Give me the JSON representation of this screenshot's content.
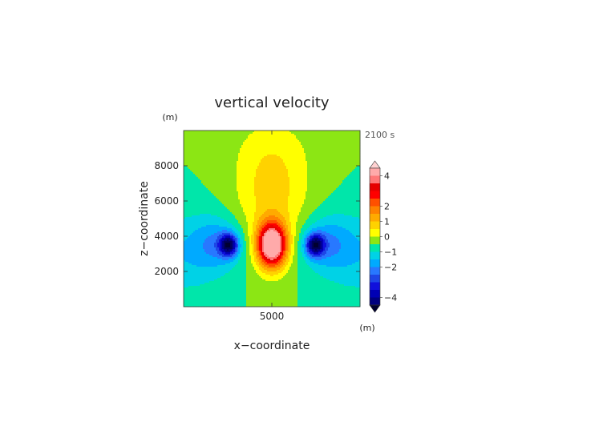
{
  "chart_data": {
    "type": "heatmap",
    "title": "vertical velocity",
    "xlabel": "x−coordinate",
    "ylabel": "z−coordinate",
    "x_unit": "(m)",
    "y_unit": "(m)",
    "time_label": "2100 s",
    "xlim": [
      0,
      10000
    ],
    "ylim": [
      0,
      10000
    ],
    "xticks": [
      {
        "value": 5000,
        "label": "5000"
      }
    ],
    "yticks": [
      {
        "value": 2000,
        "label": "2000"
      },
      {
        "value": 4000,
        "label": "4000"
      },
      {
        "value": 6000,
        "label": "6000"
      },
      {
        "value": 8000,
        "label": "8000"
      }
    ],
    "grid": false,
    "legend": "right",
    "colorbar": {
      "levels": [
        -4.5,
        -4,
        -3.5,
        -3,
        -2.5,
        -2,
        -1.5,
        -1,
        -0.5,
        0,
        0.5,
        1,
        1.5,
        2,
        2.5,
        3,
        3.5,
        4,
        4.5
      ],
      "colors": [
        "#000030",
        "#00005a",
        "#000080",
        "#0000b4",
        "#1010dc",
        "#1e46e6",
        "#2878ff",
        "#00aaff",
        "#00d2e6",
        "#00e6aa",
        "#8ce614",
        "#ffff00",
        "#ffd200",
        "#ffaa00",
        "#ff8200",
        "#ff5000",
        "#ff0000",
        "#e60000",
        "#ff7878",
        "#ffaaaa",
        "#ffd2d2"
      ],
      "tick_labels": [
        {
          "value": 4,
          "label": "4"
        },
        {
          "value": 2,
          "label": "2"
        },
        {
          "value": 1,
          "label": "1"
        },
        {
          "value": 0,
          "label": "0"
        },
        {
          "value": -1,
          "label": "−1"
        },
        {
          "value": -2,
          "label": "−2"
        },
        {
          "value": -4,
          "label": "−4"
        }
      ]
    },
    "features": [
      {
        "kind": "updraft",
        "x": 5000,
        "z": 3500,
        "peak": 5
      },
      {
        "kind": "downdraft",
        "x": 2550,
        "z": 3500,
        "peak": -3.5
      },
      {
        "kind": "downdraft",
        "x": 7450,
        "z": 3500,
        "peak": -3.5
      }
    ]
  }
}
